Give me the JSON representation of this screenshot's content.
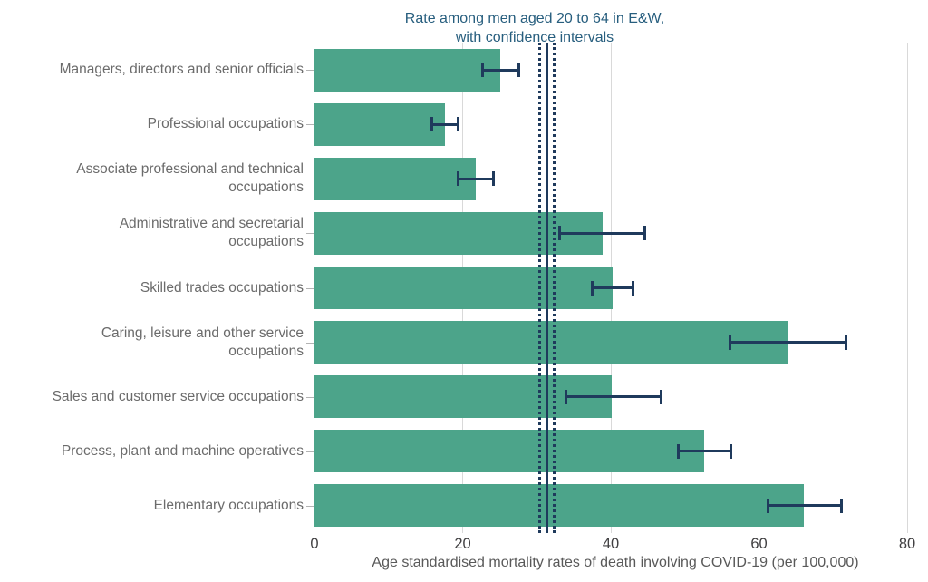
{
  "title": {
    "line1": "Rate among men aged 20 to 64 in E&W,",
    "line2": "with confidence intervals"
  },
  "x_axis_label": "Age standardised mortality rates of death involving COVID-19 (per 100,000)",
  "colors": {
    "bar_green": "#4ca48a",
    "navy_lines": "#1f3a5c",
    "title_blue": "#275e7e",
    "category_label_gray": "#6b6b6b",
    "tick_label_gray": "#414042",
    "gridline_gray": "#d9d9d9",
    "category_tick_gray": "#b3b3b3"
  },
  "chart_data": {
    "type": "bar",
    "orientation": "horizontal",
    "title": "Rate among men aged 20 to 64 in E&W, with confidence intervals",
    "xlabel": "Age standardised mortality rates of death involving COVID-19 (per 100,000)",
    "xlim": [
      0,
      80
    ],
    "xticks": [
      0,
      20,
      40,
      60,
      80
    ],
    "grid": "vertical gridlines at 20, 40, 60, 80 behind bars",
    "legend": "none",
    "categories": [
      "Managers, directors and senior officials",
      "Professional occupations",
      "Associate professional and technical occupations",
      "Administrative and secretarial occupations",
      "Skilled trades occupations",
      "Caring, leisure and other service occupations",
      "Sales and customer service occupations",
      "Process, plant and machine operatives",
      "Elementary occupations"
    ],
    "category_label_lines": [
      [
        "Managers, directors and senior officials"
      ],
      [
        "Professional occupations"
      ],
      [
        "Associate professional and technical",
        "occupations"
      ],
      [
        "Administrative and secretarial",
        "occupations"
      ],
      [
        "Skilled trades occupations"
      ],
      [
        "Caring, leisure and other service",
        "occupations"
      ],
      [
        "Sales and customer service occupations"
      ],
      [
        "Process, plant and machine operatives"
      ],
      [
        "Elementary occupations"
      ]
    ],
    "values": [
      25.1,
      17.6,
      21.8,
      38.9,
      40.3,
      64.0,
      40.1,
      52.6,
      66.0
    ],
    "ci_low": [
      22.7,
      15.9,
      19.4,
      33.1,
      37.5,
      56.1,
      33.9,
      49.1,
      61.2
    ],
    "ci_high": [
      27.6,
      19.4,
      24.2,
      44.6,
      43.0,
      71.8,
      46.8,
      56.2,
      71.1
    ],
    "reference_lines": {
      "solid_value": 31.4,
      "dotted_values": [
        30.4,
        32.3
      ],
      "meaning": "overall rate with confidence interval"
    }
  }
}
